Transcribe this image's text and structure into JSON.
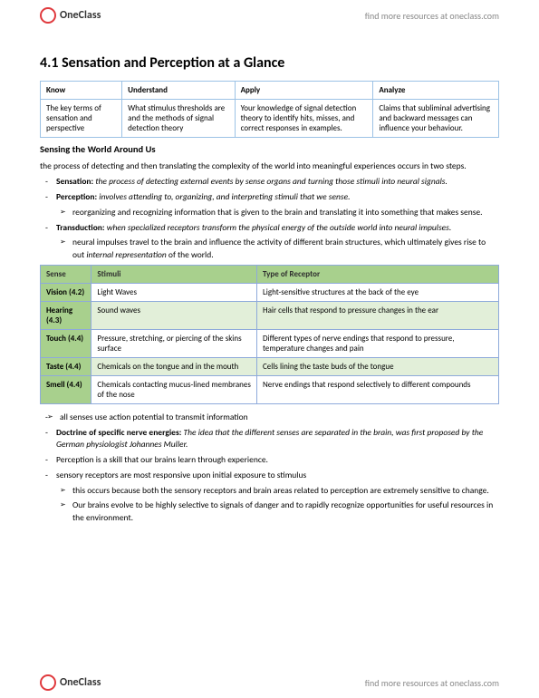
{
  "brand": {
    "name": "OneClass",
    "tagline": "find more resources at oneclass.com"
  },
  "title": "4.1 Sensation and Perception at a Glance",
  "kuaa": {
    "headers": [
      "Know",
      "Understand",
      "Apply",
      "Analyze"
    ],
    "cells": [
      "The key terms of sensation and perspective",
      "What stimulus thresholds are and the methods of signal detection theory",
      "Your knowledge of signal detection theory to identify hits, misses, and correct responses in examples.",
      "Claims that subliminal advertising and backward messages can influence your behaviour."
    ]
  },
  "subheading": "Sensing the World Around Us",
  "intro": "the process of detecting and then translating the complexity of the world into meaningful experiences occurs in two steps.",
  "defs": {
    "sensation": {
      "term": "Sensation:",
      "text": "the process of detecting external events by sense organs and turning those stimuli into neural signals."
    },
    "perception": {
      "term": "Perception:",
      "text": "involves attending to, organizing, and interpreting stimuli that we sense."
    },
    "perception_sub": "reorganizing and recognizing information that is given to the brain and translating it into something that makes sense.",
    "transduction": {
      "term": "Transduction:",
      "text": "when specialized receptors transform the physical energy of the outside world into neural impulses."
    },
    "transduction_sub": "neural impulses travel to the brain and influence the activity of different brain structures, which ultimately gives rise to out internal representation of the world."
  },
  "senses": {
    "headers": [
      "Sense",
      "Stimuli",
      "Type of Receptor"
    ],
    "rows": [
      {
        "sense": "Vision (4.2)",
        "stimuli": "Light Waves",
        "receptor": "Light-sensitive structures at the back of the eye"
      },
      {
        "sense": "Hearing (4.3)",
        "stimuli": "Sound waves",
        "receptor": "Hair cells that respond to pressure changes in the ear"
      },
      {
        "sense": "Touch (4.4)",
        "stimuli": "Pressure, stretching, or piercing of the skins surface",
        "receptor": "Different types of nerve endings that respond to pressure, temperature changes and pain"
      },
      {
        "sense": "Taste (4.4)",
        "stimuli": "Chemicals on the tongue and in the mouth",
        "receptor": "Cells lining the taste buds of the tongue"
      },
      {
        "sense": "Smell (4.4)",
        "stimuli": "Chemicals contacting mucus-lined membranes of the nose",
        "receptor": "Nerve endings that respond selectively to different compounds"
      }
    ]
  },
  "notes": {
    "n1": "all senses use action potential to transmit information",
    "doctrine_term": "Doctrine of specific nerve energies:",
    "doctrine_text": "The idea that the different senses are separated in the brain, was first proposed by the German physiologist Johannes Muller.",
    "n2": "Perception is a skill that our brains learn through experience.",
    "n3": "sensory receptors are most responsive upon initial exposure to stimulus",
    "n3a": "this occurs because both the sensory receptors and brain areas related to perception are extremely sensitive to change.",
    "n3b": "Our brains evolve to be highly selective to signals of danger and to rapidly recognize opportunities for useful resources in the environment."
  },
  "internal_rep_ital": "internal representation"
}
